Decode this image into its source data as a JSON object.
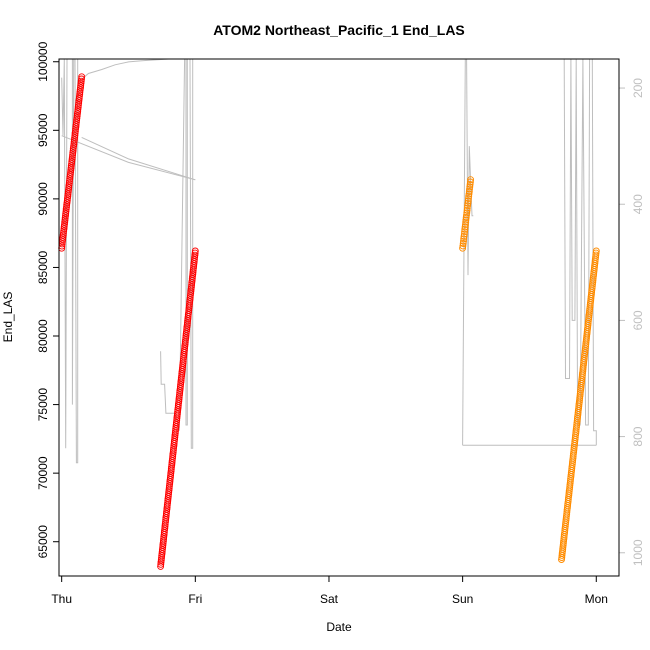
{
  "chart_data": {
    "type": "scatter",
    "title": "ATOM2 Northeast_Pacific_1 End_LAS",
    "xlabel": "Date",
    "ylabel": "End_LAS",
    "x_ticks": [
      "Thu",
      "Fri",
      "Sat",
      "Sun",
      "Mon"
    ],
    "xlim": [
      -0.02,
      4.17
    ],
    "ylim": [
      62500,
      100200
    ],
    "y_ticks": [
      65000,
      70000,
      75000,
      80000,
      85000,
      90000,
      95000,
      100000
    ],
    "y2lim": [
      1040,
      150
    ],
    "y2_ticks": [
      200,
      400,
      600,
      800,
      1000
    ],
    "colors": {
      "red": "#ff0000",
      "orange": "#ff8c00",
      "line": "#bebebe"
    },
    "series": [
      {
        "color": "red",
        "x_start": 0.0,
        "x_end": 0.15,
        "y_start": 86400,
        "y_end": 98900,
        "n": 80
      },
      {
        "color": "red",
        "x_start": 0.74,
        "x_end": 1.0,
        "y_start": 63200,
        "y_end": 86200,
        "n": 150
      },
      {
        "color": "orange",
        "x_start": 3.0,
        "x_end": 3.06,
        "y_start": 86400,
        "y_end": 91400,
        "n": 30
      },
      {
        "color": "orange",
        "x_start": 3.74,
        "x_end": 4.0,
        "y_start": 63700,
        "y_end": 86200,
        "n": 150
      }
    ],
    "line_series": [
      [
        [
          0.0,
          182
        ],
        [
          0.01,
          282
        ],
        [
          0.02,
          150
        ],
        [
          0.03,
          820
        ],
        [
          0.04,
          150
        ],
        [
          0.08,
          150
        ],
        [
          0.08,
          745
        ],
        [
          0.09,
          150
        ],
        [
          0.1,
          150
        ],
        [
          0.11,
          845
        ],
        [
          0.12,
          845
        ],
        [
          0.12,
          150
        ],
        [
          0.13,
          150
        ],
        [
          0.15,
          150
        ]
      ],
      [
        [
          0.15,
          185
        ],
        [
          0.2,
          175
        ],
        [
          0.3,
          168
        ],
        [
          0.4,
          160
        ],
        [
          0.5,
          155
        ],
        [
          0.6,
          153
        ],
        [
          0.8,
          150
        ],
        [
          1.0,
          150
        ],
        [
          1.3,
          150
        ],
        [
          3.0,
          150
        ]
      ],
      [
        [
          0.0,
          282
        ],
        [
          0.5,
          328
        ],
        [
          1.0,
          358
        ]
      ],
      [
        [
          1.0,
          358
        ],
        [
          0.5,
          322
        ],
        [
          0.15,
          285
        ]
      ],
      [
        [
          0.74,
          653
        ],
        [
          0.745,
          710
        ],
        [
          0.76,
          710
        ],
        [
          0.77,
          710
        ],
        [
          0.78,
          760
        ],
        [
          0.85,
          760
        ],
        [
          0.88,
          790
        ],
        [
          0.92,
          150
        ],
        [
          0.93,
          150
        ],
        [
          0.93,
          780
        ],
        [
          0.94,
          780
        ],
        [
          0.94,
          150
        ],
        [
          0.95,
          150
        ],
        [
          0.96,
          150
        ],
        [
          0.97,
          820
        ],
        [
          0.98,
          820
        ],
        [
          0.98,
          150
        ],
        [
          1.0,
          150
        ]
      ],
      [
        [
          3.0,
          815
        ],
        [
          3.02,
          150
        ],
        [
          3.03,
          150
        ],
        [
          3.04,
          522
        ],
        [
          3.05,
          300
        ],
        [
          3.06,
          360
        ],
        [
          3.07,
          420
        ],
        [
          3.08,
          420
        ]
      ],
      [
        [
          3.0,
          815
        ],
        [
          3.5,
          815
        ],
        [
          4.0,
          815
        ]
      ],
      [
        [
          3.74,
          150
        ],
        [
          3.76,
          150
        ],
        [
          3.77,
          700
        ],
        [
          3.8,
          700
        ],
        [
          3.81,
          150
        ],
        [
          3.82,
          600
        ],
        [
          3.84,
          600
        ],
        [
          3.85,
          150
        ],
        [
          3.86,
          780
        ],
        [
          3.88,
          780
        ],
        [
          3.9,
          150
        ],
        [
          3.92,
          780
        ],
        [
          3.94,
          780
        ],
        [
          3.95,
          150
        ],
        [
          3.97,
          150
        ],
        [
          3.98,
          790
        ],
        [
          3.99,
          790
        ],
        [
          4.0,
          790
        ],
        [
          4.0,
          815
        ]
      ]
    ]
  }
}
